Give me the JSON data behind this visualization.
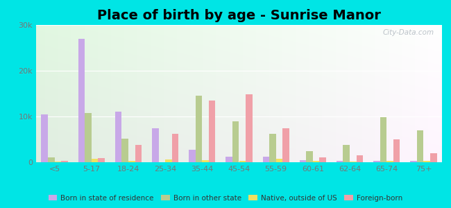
{
  "title": "Place of birth by age - Sunrise Manor",
  "categories": [
    "<5",
    "5-17",
    "18-24",
    "25-34",
    "35-44",
    "45-54",
    "55-59",
    "60-61",
    "62-64",
    "65-74",
    "75+"
  ],
  "series": {
    "Born in state of residence": [
      10500,
      27000,
      11000,
      7500,
      2800,
      1200,
      1200,
      400,
      300,
      300,
      300
    ],
    "Born in other state": [
      1000,
      10800,
      5200,
      0,
      14500,
      9000,
      6200,
      2500,
      3800,
      9800,
      7000
    ],
    "Native, outside of US": [
      200,
      700,
      300,
      600,
      500,
      300,
      700,
      300,
      200,
      300,
      300
    ],
    "Foreign-born": [
      300,
      900,
      3800,
      6200,
      13500,
      14800,
      7500,
      1000,
      1500,
      5000,
      2000
    ]
  },
  "colors": {
    "Born in state of residence": "#c8a8e8",
    "Born in other state": "#b8cc90",
    "Native, outside of US": "#f0e060",
    "Foreign-born": "#f0a0a8"
  },
  "ylim": [
    0,
    30000
  ],
  "yticks": [
    0,
    10000,
    20000,
    30000
  ],
  "ytick_labels": [
    "0",
    "10k",
    "20k",
    "30k"
  ],
  "background_color": "#00e5e5",
  "watermark": "City-Data.com",
  "bar_width": 0.18,
  "title_fontsize": 14
}
